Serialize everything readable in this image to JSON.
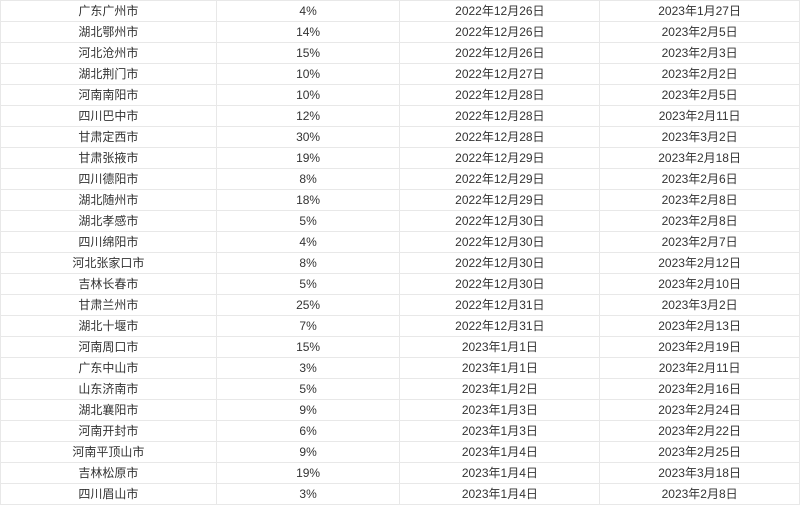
{
  "table": {
    "columns": [
      "city",
      "percent",
      "date1",
      "date2"
    ],
    "col_widths_pct": [
      27,
      23,
      25,
      25
    ],
    "font_size_pt": 9,
    "text_color": "#333333",
    "border_color": "#e8e8e8",
    "background_color": "#ffffff",
    "text_align": "center",
    "rows": [
      {
        "city": "广东广州市",
        "percent": "4%",
        "date1": "2022年12月26日",
        "date2": "2023年1月27日"
      },
      {
        "city": "湖北鄂州市",
        "percent": "14%",
        "date1": "2022年12月26日",
        "date2": "2023年2月5日"
      },
      {
        "city": "河北沧州市",
        "percent": "15%",
        "date1": "2022年12月26日",
        "date2": "2023年2月3日"
      },
      {
        "city": "湖北荆门市",
        "percent": "10%",
        "date1": "2022年12月27日",
        "date2": "2023年2月2日"
      },
      {
        "city": "河南南阳市",
        "percent": "10%",
        "date1": "2022年12月28日",
        "date2": "2023年2月5日"
      },
      {
        "city": "四川巴中市",
        "percent": "12%",
        "date1": "2022年12月28日",
        "date2": "2023年2月11日"
      },
      {
        "city": "甘肃定西市",
        "percent": "30%",
        "date1": "2022年12月28日",
        "date2": "2023年3月2日"
      },
      {
        "city": "甘肃张掖市",
        "percent": "19%",
        "date1": "2022年12月29日",
        "date2": "2023年2月18日"
      },
      {
        "city": "四川德阳市",
        "percent": "8%",
        "date1": "2022年12月29日",
        "date2": "2023年2月6日"
      },
      {
        "city": "湖北随州市",
        "percent": "18%",
        "date1": "2022年12月29日",
        "date2": "2023年2月8日"
      },
      {
        "city": "湖北孝感市",
        "percent": "5%",
        "date1": "2022年12月30日",
        "date2": "2023年2月8日"
      },
      {
        "city": "四川绵阳市",
        "percent": "4%",
        "date1": "2022年12月30日",
        "date2": "2023年2月7日"
      },
      {
        "city": "河北张家口市",
        "percent": "8%",
        "date1": "2022年12月30日",
        "date2": "2023年2月12日"
      },
      {
        "city": "吉林长春市",
        "percent": "5%",
        "date1": "2022年12月30日",
        "date2": "2023年2月10日"
      },
      {
        "city": "甘肃兰州市",
        "percent": "25%",
        "date1": "2022年12月31日",
        "date2": "2023年3月2日"
      },
      {
        "city": "湖北十堰市",
        "percent": "7%",
        "date1": "2022年12月31日",
        "date2": "2023年2月13日"
      },
      {
        "city": "河南周口市",
        "percent": "15%",
        "date1": "2023年1月1日",
        "date2": "2023年2月19日"
      },
      {
        "city": "广东中山市",
        "percent": "3%",
        "date1": "2023年1月1日",
        "date2": "2023年2月11日"
      },
      {
        "city": "山东济南市",
        "percent": "5%",
        "date1": "2023年1月2日",
        "date2": "2023年2月16日"
      },
      {
        "city": "湖北襄阳市",
        "percent": "9%",
        "date1": "2023年1月3日",
        "date2": "2023年2月24日"
      },
      {
        "city": "河南开封市",
        "percent": "6%",
        "date1": "2023年1月3日",
        "date2": "2023年2月22日"
      },
      {
        "city": "河南平顶山市",
        "percent": "9%",
        "date1": "2023年1月4日",
        "date2": "2023年2月25日"
      },
      {
        "city": "吉林松原市",
        "percent": "19%",
        "date1": "2023年1月4日",
        "date2": "2023年3月18日"
      },
      {
        "city": "四川眉山市",
        "percent": "3%",
        "date1": "2023年1月4日",
        "date2": "2023年2月8日"
      }
    ]
  }
}
